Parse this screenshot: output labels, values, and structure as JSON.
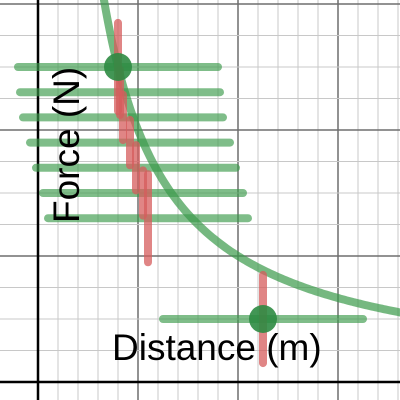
{
  "chart_data": {
    "type": "scatter",
    "title": "",
    "xlabel": "Distance (m)",
    "ylabel": "Force (N)",
    "xlim": [
      0,
      3.6
    ],
    "ylim": [
      0,
      3.0
    ],
    "grid": true,
    "x_major_step": 1,
    "x_minor_step": 0.2,
    "y_major_step": 1,
    "y_minor_step": 0.25,
    "curve": {
      "formula": "F = 2 / d",
      "k": 2,
      "color": "#3a9a4a"
    },
    "points": [
      {
        "x": 0.8,
        "y": 2.5,
        "marker": true,
        "x_err": 1.0,
        "y_err": 0.35
      },
      {
        "x": 0.82,
        "y": 2.3,
        "marker": false,
        "x_err": 1.0,
        "y_err": 0.18
      },
      {
        "x": 0.85,
        "y": 2.1,
        "marker": false,
        "x_err": 1.0,
        "y_err": 0.18
      },
      {
        "x": 0.92,
        "y": 1.9,
        "marker": false,
        "x_err": 1.0,
        "y_err": 0.18
      },
      {
        "x": 0.98,
        "y": 1.7,
        "marker": false,
        "x_err": 1.0,
        "y_err": 0.18
      },
      {
        "x": 1.05,
        "y": 1.5,
        "marker": false,
        "x_err": 1.0,
        "y_err": 0.18
      },
      {
        "x": 1.1,
        "y": 1.3,
        "marker": false,
        "x_err": 1.0,
        "y_err": 0.35
      },
      {
        "x": 2.25,
        "y": 0.5,
        "marker": true,
        "x_err": 1.0,
        "y_err": 0.35
      }
    ],
    "marker_color": "#2e8b43",
    "x_error_color": "#3a9a4a",
    "y_error_color": "#d65c5c"
  }
}
